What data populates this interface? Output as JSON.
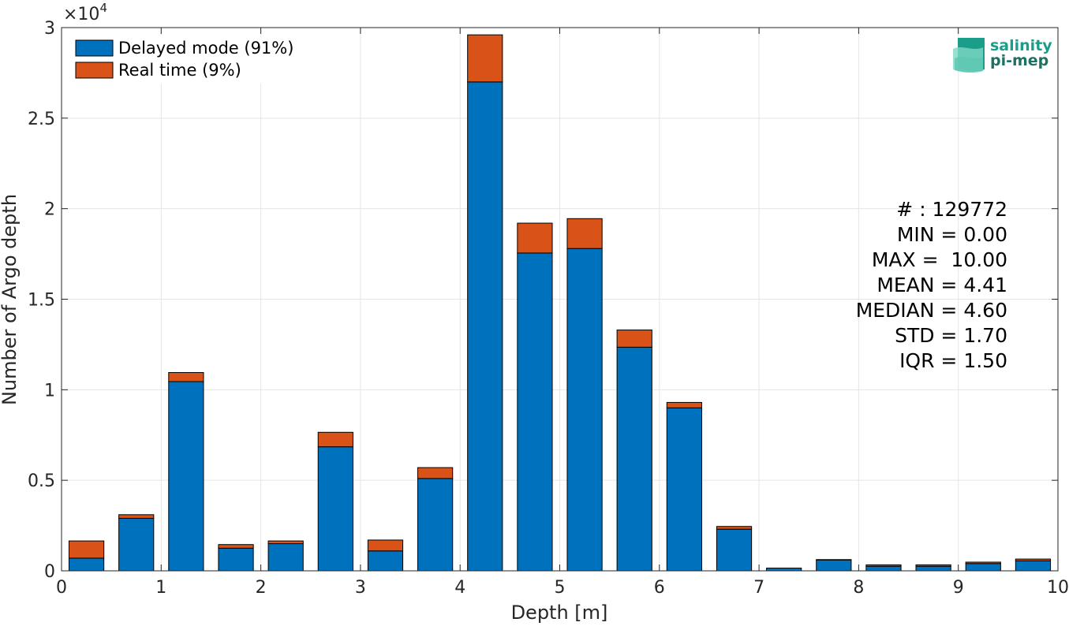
{
  "chart_data": {
    "type": "bar",
    "stacked": true,
    "xlabel": "Depth [m]",
    "ylabel": "Number of Argo depth",
    "exponent_label": "×10",
    "exponent_power": "4",
    "xlim": [
      0,
      10
    ],
    "ylim": [
      0,
      30000
    ],
    "xticks": [
      0,
      1,
      2,
      3,
      4,
      5,
      6,
      7,
      8,
      9,
      10
    ],
    "xtick_labels": [
      "0",
      "1",
      "2",
      "3",
      "4",
      "5",
      "6",
      "7",
      "8",
      "9",
      "10"
    ],
    "yticks": [
      0,
      5000,
      10000,
      15000,
      20000,
      25000,
      30000
    ],
    "ytick_labels": [
      "0",
      "0.5",
      "1",
      "1.5",
      "2",
      "2.5",
      "3"
    ],
    "grid": true,
    "legend_position": "top-left",
    "x": [
      0.25,
      0.75,
      1.25,
      1.75,
      2.25,
      2.75,
      3.25,
      3.75,
      4.25,
      4.75,
      5.25,
      5.75,
      6.25,
      6.75,
      7.25,
      7.75,
      8.25,
      8.75,
      9.25,
      9.75
    ],
    "series": [
      {
        "name": "Delayed mode (91%)",
        "color": "#0072bd",
        "values": [
          700,
          2900,
          10450,
          1250,
          1500,
          6850,
          1100,
          5100,
          27000,
          17550,
          17800,
          12350,
          9000,
          2300,
          150,
          600,
          250,
          250,
          400,
          550
        ]
      },
      {
        "name": "Real time (9%)",
        "color": "#d95319",
        "values": [
          950,
          200,
          500,
          200,
          150,
          800,
          600,
          600,
          2600,
          1650,
          1650,
          950,
          300,
          150,
          0,
          20,
          80,
          80,
          80,
          100
        ]
      }
    ],
    "stats": [
      "# : 129772",
      "MIN = 0.00",
      "MAX =  10.00",
      "MEAN = 4.41",
      "MEDIAN = 4.60",
      "STD = 1.70",
      "IQR = 1.50"
    ]
  },
  "logo": {
    "line1": "salinity",
    "line2": "pi-mep",
    "colors": [
      "#5ec7b1",
      "#1a9e8a",
      "#7fd8c4"
    ]
  }
}
